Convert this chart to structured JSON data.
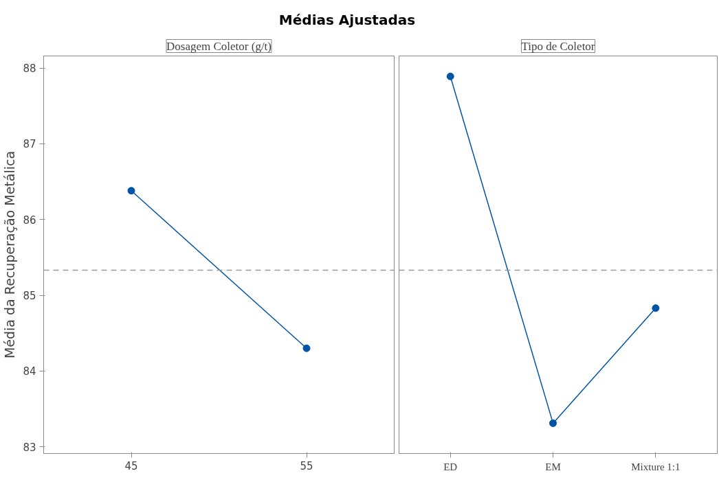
{
  "chart_data": [
    {
      "type": "line",
      "title": "Médias Ajustadas",
      "subtitle": "Dosagem Coletor (g/t)",
      "ylabel": "Média da Recuperação Metálica",
      "categories": [
        "45",
        "55"
      ],
      "series": [
        {
          "color": "#0054a6",
          "values": [
            86.38,
            84.3
          ]
        }
      ],
      "ylim": [
        82.91,
        88.16
      ],
      "yticks": [
        83,
        84,
        85,
        86,
        87,
        88
      ],
      "marker": "circle",
      "line_style": "solid",
      "grid": false,
      "ref_lines": [
        {
          "axis": "y",
          "value": 85.33,
          "color": "#999999",
          "line_style": "dashed"
        }
      ]
    },
    {
      "type": "line",
      "subtitle": "Tipo de Coletor",
      "categories": [
        "ED",
        "EM",
        "Mixture 1:1"
      ],
      "series": [
        {
          "color": "#0054a6",
          "values": [
            87.89,
            83.31,
            84.83
          ]
        }
      ],
      "ylim": [
        82.91,
        88.16
      ],
      "yticks": [
        83,
        84,
        85,
        86,
        87,
        88
      ],
      "tick_labels": "x",
      "marker": "circle",
      "line_style": "solid",
      "grid": false,
      "ref_lines": [
        {
          "axis": "y",
          "value": 85.33,
          "color": "#999999",
          "line_style": "dashed"
        }
      ]
    }
  ]
}
